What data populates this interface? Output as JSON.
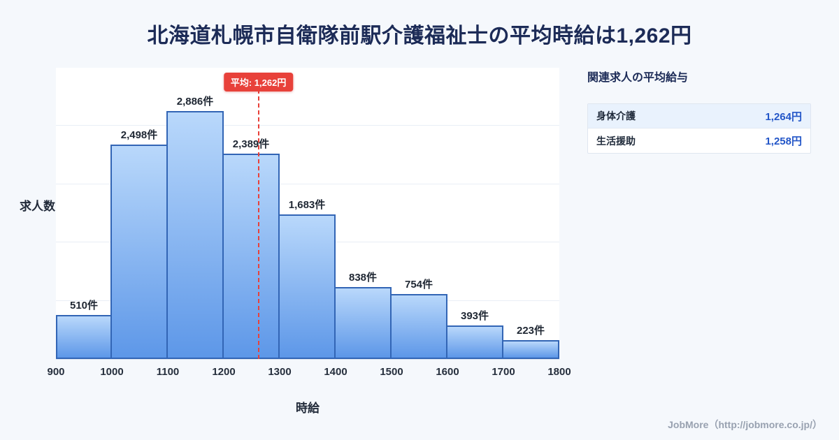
{
  "title": "北海道札幌市自衛隊前駅介護福祉士の平均時給は1,262円",
  "chart_data": {
    "type": "bar",
    "title": "北海道札幌市自衛隊前駅介護福祉士の時給分布",
    "xlabel": "時給",
    "ylabel": "求人数",
    "xlim": [
      900,
      1800
    ],
    "ylim": [
      0,
      3400
    ],
    "x_ticks": [
      "900",
      "1000",
      "1100",
      "1200",
      "1300",
      "1400",
      "1500",
      "1600",
      "1700",
      "1800"
    ],
    "bin_width": 100,
    "values": [
      510,
      2498,
      2886,
      2389,
      1683,
      838,
      754,
      393,
      223
    ],
    "labels": [
      "510件",
      "2,498件",
      "2,886件",
      "2,389件",
      "1,683件",
      "838件",
      "754件",
      "393件",
      "223件"
    ],
    "average": 1262,
    "average_label": "平均: 1,262円",
    "grid": "horizontal",
    "legend": "none",
    "colors": {
      "bar_top": "#b9d8fb",
      "bar_bottom": "#5d97e8",
      "bar_border": "#3265b5",
      "average_line": "#e8413a",
      "plot_background": "#ffffff",
      "page_background": "#f5f8fc",
      "title_text": "#1c2b57"
    }
  },
  "side_panel": {
    "heading": "関連求人の平均給与",
    "rows": [
      {
        "label": "身体介護",
        "value": "1,264円"
      },
      {
        "label": "生活援助",
        "value": "1,258円"
      }
    ],
    "value_color": "#2356c8"
  },
  "footer": {
    "credit": "JobMore（http://jobmore.co.jp/）"
  }
}
